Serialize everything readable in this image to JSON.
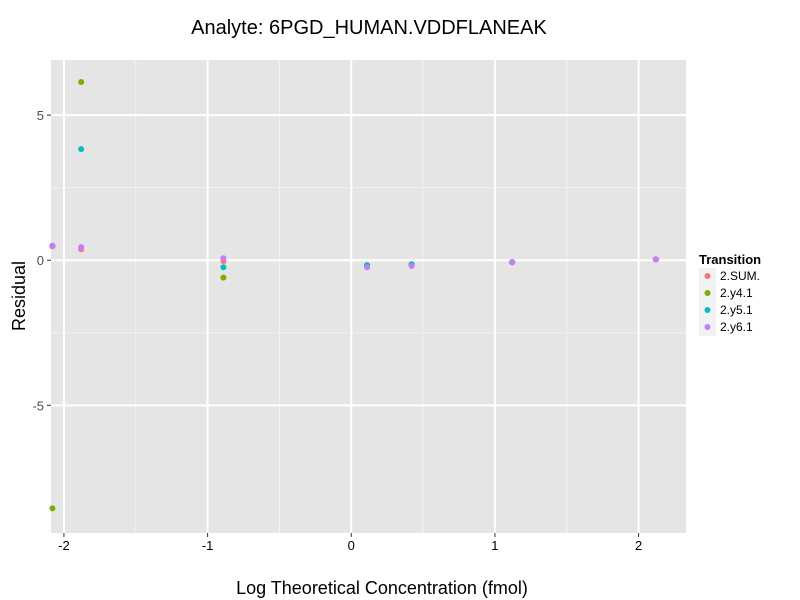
{
  "chart_data": {
    "type": "scatter",
    "title": "Analyte: 6PGD_HUMAN.VDDFLANEAK",
    "xlabel": "Log Theoretical Concentration (fmol)",
    "ylabel": "Residual",
    "xlim": [
      -2.09,
      2.33
    ],
    "ylim": [
      -9.4,
      6.9
    ],
    "xticks": [
      -2,
      -1,
      0,
      1,
      2
    ],
    "xtick_labels": [
      "-2",
      "-1",
      "0",
      "1",
      "2"
    ],
    "yticks": [
      -5,
      0,
      5
    ],
    "ytick_labels": [
      "-5",
      "0",
      "5"
    ],
    "grid": true,
    "legend": {
      "title": "Transition",
      "placement": "right"
    },
    "series": [
      {
        "name": "2.SUM.",
        "color": "#F8766D",
        "points": [
          [
            -2.08,
            0.48
          ],
          [
            -1.88,
            0.38
          ],
          [
            -0.89,
            -0.03
          ],
          [
            0.11,
            -0.2
          ],
          [
            0.42,
            -0.17
          ],
          [
            1.12,
            -0.07
          ],
          [
            2.12,
            0.03
          ]
        ]
      },
      {
        "name": "2.y4.1",
        "color": "#7CAE00",
        "points": [
          [
            -2.08,
            -8.55
          ],
          [
            -1.88,
            6.14
          ],
          [
            -0.89,
            -0.6
          ],
          [
            0.11,
            -0.18
          ],
          [
            0.42,
            -0.15
          ],
          [
            1.12,
            -0.07
          ],
          [
            2.12,
            0.03
          ]
        ]
      },
      {
        "name": "2.y5.1",
        "color": "#00BFC4",
        "points": [
          [
            -2.08,
            0.5
          ],
          [
            -1.88,
            3.83
          ],
          [
            -0.89,
            -0.24
          ],
          [
            0.11,
            -0.17
          ],
          [
            0.42,
            -0.14
          ],
          [
            1.12,
            -0.07
          ],
          [
            2.12,
            0.03
          ]
        ]
      },
      {
        "name": "2.y6.1",
        "color": "#C77CFF",
        "points": [
          [
            -2.08,
            0.5
          ],
          [
            -1.88,
            0.45
          ],
          [
            -0.89,
            0.07
          ],
          [
            0.11,
            -0.24
          ],
          [
            0.42,
            -0.2
          ],
          [
            1.12,
            -0.07
          ],
          [
            2.12,
            0.03
          ]
        ]
      }
    ]
  }
}
